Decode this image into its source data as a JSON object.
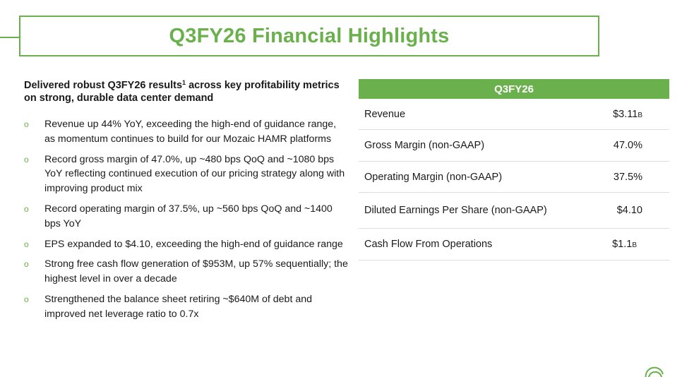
{
  "title": "Q3FY26 Financial Highlights",
  "lead": {
    "text": "Delivered robust Q3FY26 results",
    "superscript": "1",
    "text_after": " across key profitability metrics on strong, durable data center demand"
  },
  "bullet_glyph": "o",
  "bullets": [
    "Revenue up 44% YoY, exceeding the high-end of guidance range, as momentum continues to build for our Mozaic HAMR platforms",
    "Record gross margin of 47.0%, up ~480 bps QoQ and ~1080 bps YoY reflecting continued execution of our pricing strategy along with improving product mix",
    "Record operating margin of 37.5%, up ~560 bps QoQ and ~1400 bps YoY",
    "EPS expanded to $4.10, exceeding the high-end of guidance range",
    "Strong free cash flow generation of $953M, up 57% sequentially; the highest level in over a decade",
    "Strengthened the balance sheet retiring ~$640M of debt and improved net leverage ratio to 0.7x"
  ],
  "table": {
    "header": "Q3FY26",
    "rows": [
      {
        "label": "Revenue",
        "value": "$3.11",
        "unit": "B"
      },
      {
        "label": "Gross Margin (non-GAAP)",
        "value": "47.0%",
        "unit": ""
      },
      {
        "label": "Operating Margin (non-GAAP)",
        "value": "37.5%",
        "unit": ""
      },
      {
        "label": "Diluted Earnings Per Share (non-GAAP)",
        "value": "$4.10",
        "unit": ""
      },
      {
        "label": "Cash Flow From Operations",
        "value": "$1.1",
        "unit": "B"
      }
    ]
  },
  "colors": {
    "accent": "#6ab04c",
    "text": "#1a1a1a",
    "divider": "#dcdcdc"
  }
}
